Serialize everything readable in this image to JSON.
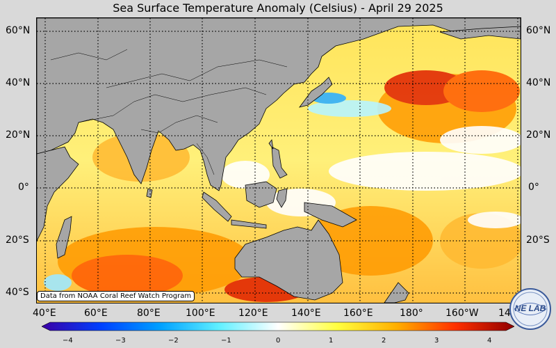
{
  "title": "Sea Surface Temperature Anomaly (Celsius) - April 29 2025",
  "lat_labels": [
    "60°N",
    "40°N",
    "20°N",
    "0°",
    "20°S",
    "40°S"
  ],
  "lon_labels": [
    "40°E",
    "60°E",
    "80°E",
    "100°E",
    "120°E",
    "140°E",
    "160°E",
    "180°",
    "160°W",
    "14"
  ],
  "credit": "Data from NOAA Coral Reef Watch Program",
  "colorbar": {
    "ticks": [
      "−4",
      "−3",
      "−2",
      "−1",
      "0",
      "1",
      "2",
      "3",
      "4"
    ],
    "range": [
      -4,
      4
    ],
    "colors": [
      "#3b00a6",
      "#0040ff",
      "#00a0ff",
      "#60f0ff",
      "#ffffff",
      "#ffff40",
      "#ffb000",
      "#ff3000",
      "#900000"
    ]
  },
  "logo_text": "NE LAB",
  "colors": {
    "land": "#a6a6a6",
    "coast": "#000000",
    "background": "#d9d9d9"
  }
}
